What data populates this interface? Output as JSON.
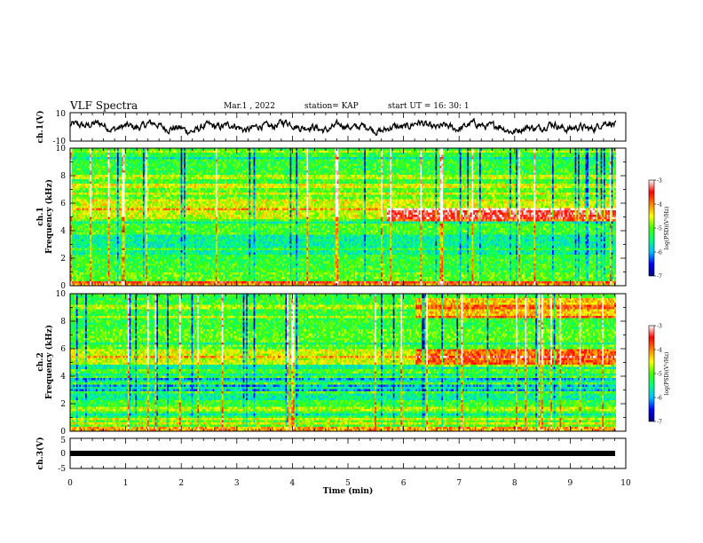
{
  "header": {
    "title": "VLF Spectra",
    "date": "Mar.1  , 2022",
    "station": "station= KAP",
    "start": "start  UT  =   16: 30: 1"
  },
  "chart_data": [
    {
      "type": "line",
      "ylabel": "ch.1(V)",
      "ylim": [
        -10,
        10
      ],
      "yticks": [
        "10",
        "-10"
      ],
      "xlim": [
        0,
        10
      ],
      "waveform_style": "noisy waveform around ~0 V"
    },
    {
      "type": "heatmap",
      "ylabel_line1": "ch.1",
      "ylabel_line2": "Frequency (kHz)",
      "ylim": [
        0,
        10
      ],
      "yticks": [
        "0",
        "2",
        "4",
        "6",
        "8",
        "10"
      ],
      "xlim": [
        0,
        10
      ],
      "colorbar": {
        "label": "log(PSD)(V²/Hz)",
        "range": [
          -7,
          -3
        ],
        "ticks": [
          "-3",
          "-4",
          "-5",
          "-6",
          "-7"
        ],
        "colors": [
          "#000080",
          "#0000ff",
          "#00c0ff",
          "#00ff80",
          "#40ff00",
          "#ffff00",
          "#ff8000",
          "#ff0000",
          "#ffffff"
        ]
      }
    },
    {
      "type": "heatmap",
      "ylabel_line1": "ch.2",
      "ylabel_line2": "Frequency (kHz)",
      "ylim": [
        0,
        10
      ],
      "yticks": [
        "0",
        "2",
        "4",
        "6",
        "8",
        "10"
      ],
      "xlim": [
        0,
        10
      ],
      "colorbar": {
        "label": "log(PSD)(V²/Hz)",
        "range": [
          -7,
          -3
        ],
        "ticks": [
          "-3",
          "-4",
          "-5",
          "-6",
          "-7"
        ],
        "colors": [
          "#000080",
          "#0000ff",
          "#00c0ff",
          "#00ff80",
          "#40ff00",
          "#ffff00",
          "#ff8000",
          "#ff0000",
          "#ffffff"
        ]
      }
    },
    {
      "type": "line",
      "ylabel": "ch.3(V)",
      "ylim": [
        -5,
        5
      ],
      "yticks": [
        "5",
        "0",
        "-5"
      ],
      "xlim": [
        0,
        10
      ],
      "xlabel": "Time  (min)",
      "xticks": [
        "0",
        "1",
        "2",
        "3",
        "4",
        "5",
        "6",
        "7",
        "8",
        "9",
        "10"
      ],
      "waveform_style": "flat thick band near 0 V"
    }
  ]
}
